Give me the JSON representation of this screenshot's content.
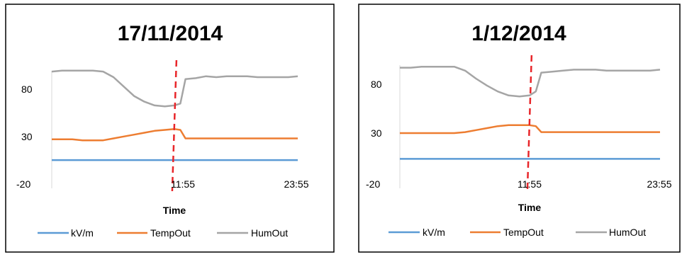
{
  "chart_data": [
    {
      "type": "line",
      "title": "17/11/2014",
      "xlabel": "Time",
      "ylabel": "",
      "ylim": [
        -20,
        105
      ],
      "y_ticks": [
        "80",
        "30",
        "-20"
      ],
      "x_tick_labels": [
        "11:55",
        "23:55"
      ],
      "x": [
        "00:00",
        "01:00",
        "02:00",
        "03:00",
        "04:00",
        "05:00",
        "06:00",
        "07:00",
        "08:00",
        "09:00",
        "10:00",
        "11:00",
        "11:55",
        "12:30",
        "13:00",
        "14:00",
        "15:00",
        "16:00",
        "17:00",
        "18:00",
        "19:00",
        "20:00",
        "21:00",
        "22:00",
        "23:00",
        "23:55"
      ],
      "series": [
        {
          "name": "kV/m",
          "color": "#5b9bd5",
          "values": [
            4,
            4,
            4,
            4,
            4,
            4,
            4,
            4,
            4,
            4,
            4,
            4,
            4,
            4,
            4,
            4,
            4,
            4,
            4,
            4,
            4,
            4,
            4,
            4,
            4,
            4
          ]
        },
        {
          "name": "TempOut",
          "color": "#ed7d31",
          "values": [
            26,
            26,
            26,
            25,
            25,
            25,
            27,
            29,
            31,
            33,
            35,
            36,
            37,
            36,
            27,
            27,
            27,
            27,
            27,
            27,
            27,
            27,
            27,
            27,
            27,
            27
          ]
        },
        {
          "name": "HumOut",
          "color": "#a5a5a5",
          "values": [
            98,
            99,
            99,
            99,
            99,
            98,
            92,
            82,
            72,
            66,
            62,
            61,
            62,
            64,
            90,
            91,
            93,
            92,
            93,
            93,
            93,
            92,
            92,
            92,
            92,
            93
          ]
        }
      ],
      "marker": {
        "x": "11:55",
        "color": "#e8262a"
      },
      "legend": "bottom",
      "grid": false
    },
    {
      "type": "line",
      "title": "1/12/2014",
      "xlabel": "Time",
      "ylabel": "",
      "ylim": [
        -20,
        105
      ],
      "y_ticks": [
        "80",
        "30",
        "-20"
      ],
      "x_tick_labels": [
        "11:55",
        "23:55"
      ],
      "x": [
        "00:00",
        "01:00",
        "02:00",
        "03:00",
        "04:00",
        "05:00",
        "06:00",
        "07:00",
        "08:00",
        "09:00",
        "10:00",
        "11:00",
        "11:55",
        "12:30",
        "13:00",
        "14:00",
        "15:00",
        "16:00",
        "17:00",
        "18:00",
        "19:00",
        "20:00",
        "21:00",
        "22:00",
        "23:00",
        "23:55"
      ],
      "series": [
        {
          "name": "kV/m",
          "color": "#5b9bd5",
          "values": [
            4,
            4,
            4,
            4,
            4,
            4,
            4,
            4,
            4,
            4,
            4,
            4,
            4,
            4,
            4,
            4,
            4,
            4,
            4,
            4,
            4,
            4,
            4,
            4,
            4,
            4
          ]
        },
        {
          "name": "TempOut",
          "color": "#ed7d31",
          "values": [
            30,
            30,
            30,
            30,
            30,
            30,
            31,
            33,
            35,
            37,
            38,
            38,
            38,
            37,
            31,
            31,
            31,
            31,
            31,
            31,
            31,
            31,
            31,
            31,
            31,
            31
          ]
        },
        {
          "name": "HumOut",
          "color": "#a5a5a5",
          "values": [
            96,
            96,
            97,
            97,
            97,
            97,
            93,
            85,
            78,
            72,
            68,
            67,
            68,
            72,
            91,
            92,
            93,
            94,
            94,
            94,
            93,
            93,
            93,
            93,
            93,
            94
          ]
        }
      ],
      "marker": {
        "x": "11:55",
        "color": "#e8262a"
      },
      "legend": "bottom",
      "grid": false
    }
  ]
}
